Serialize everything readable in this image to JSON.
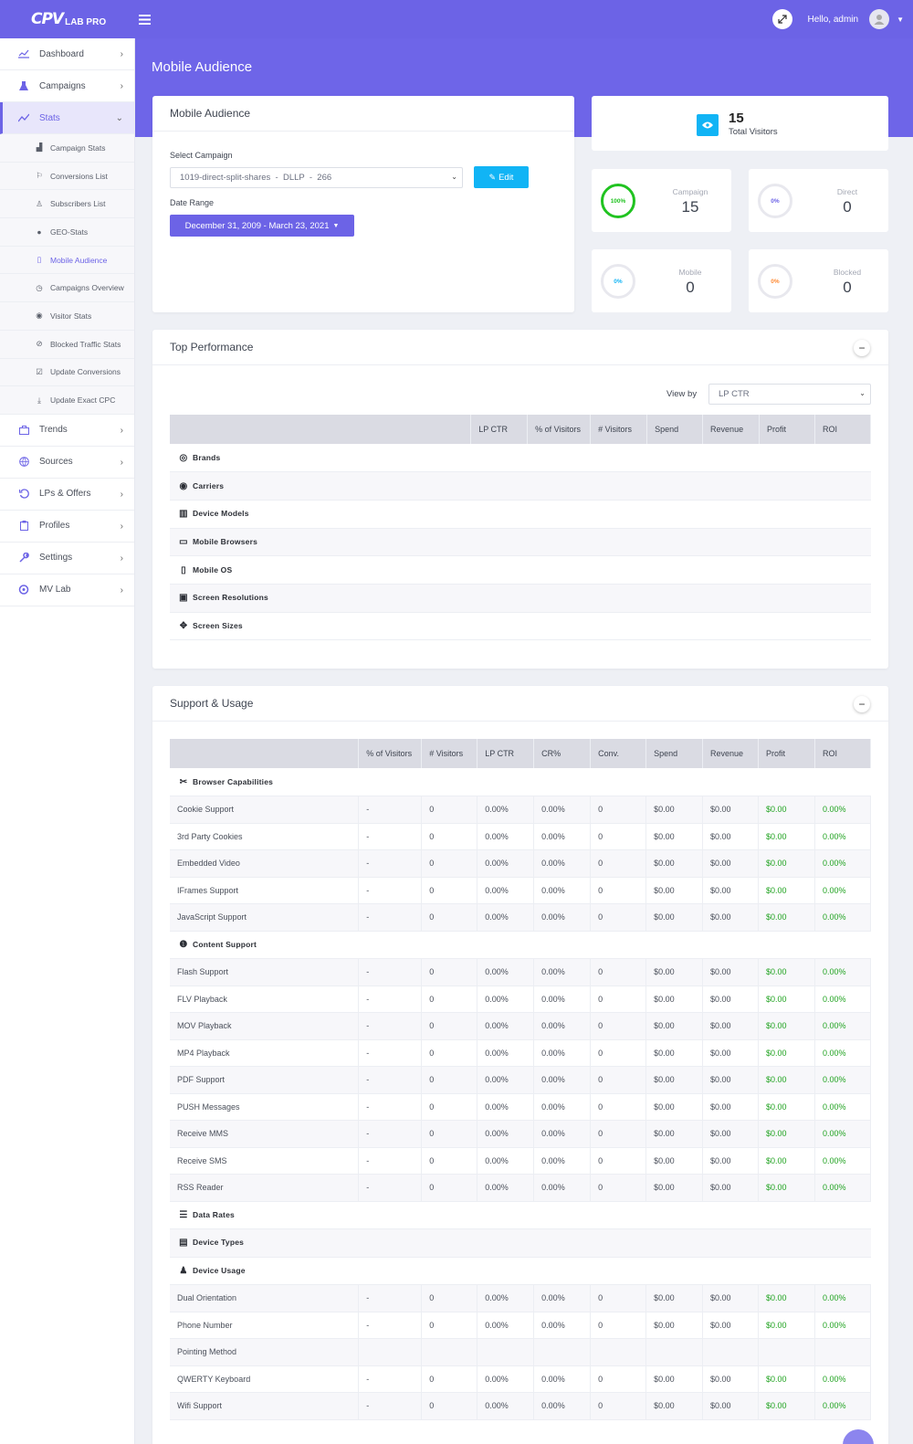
{
  "app": {
    "logo_mark": "CPV",
    "logo_text": "LAB PRO",
    "greeting": "Hello, admin"
  },
  "colors": {
    "primary": "#6c63e6",
    "info": "#11b4f5",
    "success": "#21a321",
    "warning": "#ff8a33"
  },
  "sidebar": {
    "items": [
      {
        "label": "Dashboard",
        "icon": "chart-line-icon"
      },
      {
        "label": "Campaigns",
        "icon": "flask-icon"
      },
      {
        "label": "Stats",
        "icon": "stats-icon"
      },
      {
        "label": "Trends",
        "icon": "briefcase-icon"
      },
      {
        "label": "Sources",
        "icon": "globe-icon"
      },
      {
        "label": "LPs & Offers",
        "icon": "history-icon"
      },
      {
        "label": "Profiles",
        "icon": "clipboard-icon"
      },
      {
        "label": "Settings",
        "icon": "wrench-icon"
      },
      {
        "label": "MV Lab",
        "icon": "mv-icon"
      }
    ],
    "stats_sub": [
      {
        "label": "Campaign Stats",
        "icon": "area-chart-icon"
      },
      {
        "label": "Conversions List",
        "icon": "flag-icon"
      },
      {
        "label": "Subscribers List",
        "icon": "user-icon"
      },
      {
        "label": "GEO-Stats",
        "icon": "globe-icon"
      },
      {
        "label": "Mobile Audience",
        "icon": "mobile-icon"
      },
      {
        "label": "Campaigns Overview",
        "icon": "clock-icon"
      },
      {
        "label": "Visitor Stats",
        "icon": "eye-icon"
      },
      {
        "label": "Blocked Traffic Stats",
        "icon": "ban-icon"
      },
      {
        "label": "Update Conversions",
        "icon": "check-square-icon"
      },
      {
        "label": "Update Exact CPC",
        "icon": "download-icon"
      }
    ]
  },
  "page": {
    "title": "Mobile Audience"
  },
  "filter_card": {
    "title": "Mobile Audience",
    "campaign_label": "Select Campaign",
    "campaign_value": "1019-direct-split-shares  -  DLLP  -  266",
    "edit_label": "Edit",
    "range_label": "Date Range",
    "range_value": "December 31, 2009 - March 23, 2021"
  },
  "totals": {
    "value": "15",
    "label": "Total Visitors"
  },
  "stat_boxes": [
    {
      "pct": "100%",
      "label": "Campaign",
      "value": "15",
      "pct_value": 1.0,
      "color": "#21c321"
    },
    {
      "pct": "0%",
      "label": "Direct",
      "value": "0",
      "pct_value": 0.0,
      "color": "#6c63e6"
    },
    {
      "pct": "0%",
      "label": "Mobile",
      "value": "0",
      "pct_value": 0.0,
      "color": "#11b4f5"
    },
    {
      "pct": "0%",
      "label": "Blocked",
      "value": "0",
      "pct_value": 0.0,
      "color": "#ff8a33"
    }
  ],
  "top_performance": {
    "title": "Top Performance",
    "view_by_label": "View by",
    "view_by_value": "LP CTR",
    "columns": [
      "LP CTR",
      "% of Visitors",
      "# Visitors",
      "Spend",
      "Revenue",
      "Profit",
      "ROI"
    ],
    "groups": [
      {
        "label": "Brands",
        "icon": "brand-icon"
      },
      {
        "label": "Carriers",
        "icon": "signal-icon"
      },
      {
        "label": "Device Models",
        "icon": "barcode-icon"
      },
      {
        "label": "Mobile Browsers",
        "icon": "browser-icon"
      },
      {
        "label": "Mobile OS",
        "icon": "phone-icon"
      },
      {
        "label": "Screen Resolutions",
        "icon": "screen-icon"
      },
      {
        "label": "Screen Sizes",
        "icon": "arrows-icon"
      }
    ]
  },
  "support_usage": {
    "title": "Support & Usage",
    "columns": [
      "% of Visitors",
      "# Visitors",
      "LP CTR",
      "CR%",
      "Conv.",
      "Spend",
      "Revenue",
      "Profit",
      "ROI"
    ],
    "rows": [
      {
        "type": "group",
        "label": "Browser Capabilities",
        "icon": "tools-icon"
      },
      {
        "type": "row",
        "cells": [
          "Cookie Support",
          "-",
          "0",
          "0.00%",
          "0.00%",
          "0",
          "$0.00",
          "$0.00",
          "$0.00",
          "0.00%"
        ]
      },
      {
        "type": "row",
        "cells": [
          "3rd Party Cookies",
          "-",
          "0",
          "0.00%",
          "0.00%",
          "0",
          "$0.00",
          "$0.00",
          "$0.00",
          "0.00%"
        ]
      },
      {
        "type": "row",
        "cells": [
          "Embedded Video",
          "-",
          "0",
          "0.00%",
          "0.00%",
          "0",
          "$0.00",
          "$0.00",
          "$0.00",
          "0.00%"
        ]
      },
      {
        "type": "row",
        "cells": [
          "IFrames Support",
          "-",
          "0",
          "0.00%",
          "0.00%",
          "0",
          "$0.00",
          "$0.00",
          "$0.00",
          "0.00%"
        ]
      },
      {
        "type": "row",
        "cells": [
          "JavaScript Support",
          "-",
          "0",
          "0.00%",
          "0.00%",
          "0",
          "$0.00",
          "$0.00",
          "$0.00",
          "0.00%"
        ]
      },
      {
        "type": "group",
        "label": "Content Support",
        "icon": "info-icon"
      },
      {
        "type": "row",
        "cells": [
          "Flash Support",
          "-",
          "0",
          "0.00%",
          "0.00%",
          "0",
          "$0.00",
          "$0.00",
          "$0.00",
          "0.00%"
        ]
      },
      {
        "type": "row",
        "cells": [
          "FLV Playback",
          "-",
          "0",
          "0.00%",
          "0.00%",
          "0",
          "$0.00",
          "$0.00",
          "$0.00",
          "0.00%"
        ]
      },
      {
        "type": "row",
        "cells": [
          "MOV Playback",
          "-",
          "0",
          "0.00%",
          "0.00%",
          "0",
          "$0.00",
          "$0.00",
          "$0.00",
          "0.00%"
        ]
      },
      {
        "type": "row",
        "cells": [
          "MP4 Playback",
          "-",
          "0",
          "0.00%",
          "0.00%",
          "0",
          "$0.00",
          "$0.00",
          "$0.00",
          "0.00%"
        ]
      },
      {
        "type": "row",
        "cells": [
          "PDF Support",
          "-",
          "0",
          "0.00%",
          "0.00%",
          "0",
          "$0.00",
          "$0.00",
          "$0.00",
          "0.00%"
        ]
      },
      {
        "type": "row",
        "cells": [
          "PUSH Messages",
          "-",
          "0",
          "0.00%",
          "0.00%",
          "0",
          "$0.00",
          "$0.00",
          "$0.00",
          "0.00%"
        ]
      },
      {
        "type": "row",
        "cells": [
          "Receive MMS",
          "-",
          "0",
          "0.00%",
          "0.00%",
          "0",
          "$0.00",
          "$0.00",
          "$0.00",
          "0.00%"
        ]
      },
      {
        "type": "row",
        "cells": [
          "Receive SMS",
          "-",
          "0",
          "0.00%",
          "0.00%",
          "0",
          "$0.00",
          "$0.00",
          "$0.00",
          "0.00%"
        ]
      },
      {
        "type": "row",
        "cells": [
          "RSS Reader",
          "-",
          "0",
          "0.00%",
          "0.00%",
          "0",
          "$0.00",
          "$0.00",
          "$0.00",
          "0.00%"
        ]
      },
      {
        "type": "group",
        "label": "Data Rates",
        "icon": "database-icon"
      },
      {
        "type": "group",
        "label": "Device Types",
        "icon": "devices-icon"
      },
      {
        "type": "group",
        "label": "Device Usage",
        "icon": "user-gear-icon"
      },
      {
        "type": "row",
        "cells": [
          "Dual Orientation",
          "-",
          "0",
          "0.00%",
          "0.00%",
          "0",
          "$0.00",
          "$0.00",
          "$0.00",
          "0.00%"
        ]
      },
      {
        "type": "row",
        "cells": [
          "Phone Number",
          "-",
          "0",
          "0.00%",
          "0.00%",
          "0",
          "$0.00",
          "$0.00",
          "$0.00",
          "0.00%"
        ]
      },
      {
        "type": "row",
        "cells": [
          "Pointing Method",
          "",
          "",
          "",
          "",
          "",
          "",
          "",
          "",
          ""
        ]
      },
      {
        "type": "row",
        "cells": [
          "QWERTY Keyboard",
          "-",
          "0",
          "0.00%",
          "0.00%",
          "0",
          "$0.00",
          "$0.00",
          "$0.00",
          "0.00%"
        ]
      },
      {
        "type": "row",
        "cells": [
          "Wifi Support",
          "-",
          "0",
          "0.00%",
          "0.00%",
          "0",
          "$0.00",
          "$0.00",
          "$0.00",
          "0.00%"
        ]
      }
    ]
  }
}
